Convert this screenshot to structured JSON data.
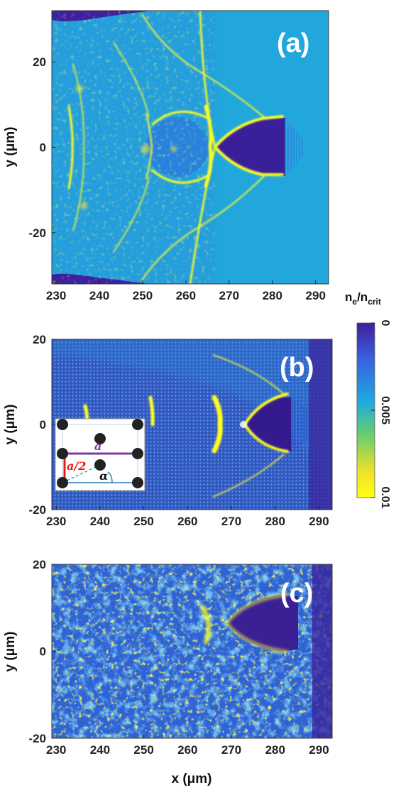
{
  "colorbar": {
    "title_main": "n",
    "title_sub1": "e",
    "title_slash": "/n",
    "title_sub2": "crit",
    "ticks": [
      "0",
      "0.005",
      "0.01"
    ],
    "colors": [
      "#3d1f99",
      "#3a5fe0",
      "#20a9de",
      "#6ccf6a",
      "#f0e12a",
      "#ffff10"
    ]
  },
  "inset": {
    "label_a": "a",
    "label_half": "a/2",
    "label_alpha": "α",
    "color_a": "#7b3aa3",
    "color_half": "#e81818"
  },
  "chart_data": [
    {
      "type": "heatmap",
      "panel_label": "(a)",
      "xlabel": "",
      "ylabel": "y (μm)",
      "xlim": [
        229,
        293
      ],
      "ylim": [
        -32,
        32
      ],
      "xticks": [
        "230",
        "240",
        "250",
        "260",
        "270",
        "280",
        "290"
      ],
      "yticks": [
        "20",
        "0",
        "-20"
      ],
      "colorbar_label": "n_e/n_crit",
      "clim": [
        0,
        0.01
      ]
    },
    {
      "type": "heatmap",
      "panel_label": "(b)",
      "xlabel": "",
      "ylabel": "y (μm)",
      "xlim": [
        229,
        293
      ],
      "ylim": [
        -20,
        20
      ],
      "xticks": [
        "230",
        "240",
        "250",
        "260",
        "270",
        "280",
        "290"
      ],
      "yticks": [
        "20",
        "0",
        "-20"
      ],
      "colorbar_label": "n_e/n_crit",
      "clim": [
        0,
        0.01
      ]
    },
    {
      "type": "heatmap",
      "panel_label": "(c)",
      "xlabel": "x (μm)",
      "ylabel": "y (μm)",
      "xlim": [
        229,
        293
      ],
      "ylim": [
        -20,
        20
      ],
      "xticks": [
        "230",
        "240",
        "250",
        "260",
        "270",
        "280",
        "290"
      ],
      "yticks": [
        "20",
        "0",
        "-20"
      ],
      "colorbar_label": "n_e/n_crit",
      "clim": [
        0,
        0.01
      ]
    }
  ]
}
